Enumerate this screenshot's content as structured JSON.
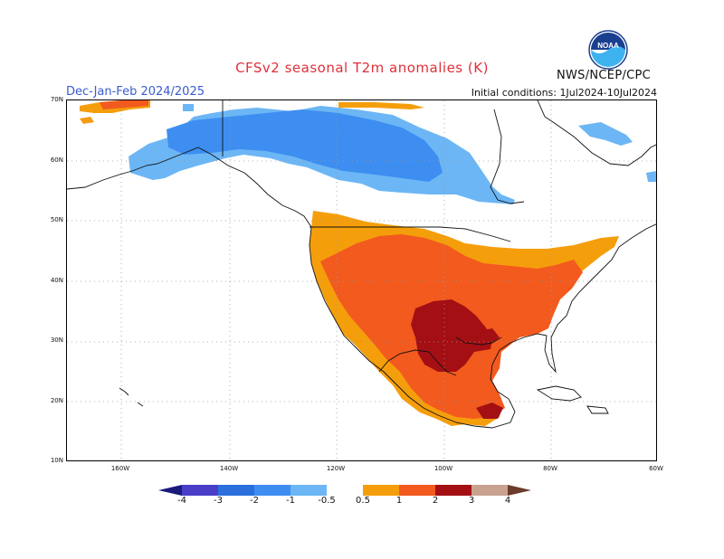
{
  "header": {
    "title": "CFSv2 seasonal T2m anomalies (K)",
    "season": "Dec-Jan-Feb 2024/2025",
    "initial_conditions": "Initial conditions: 1Jul2024-10Jul2024",
    "agency": "NWS/NCEP/CPC",
    "logo_text": "NOAA"
  },
  "map": {
    "lat_labels": [
      "70N",
      "60N",
      "50N",
      "40N",
      "30N",
      "20N",
      "10N"
    ],
    "lon_labels": [
      "160W",
      "140W",
      "120W",
      "100W",
      "80W",
      "60W"
    ],
    "gridlines": "dotted",
    "anomaly_regions": [
      {
        "region": "northern Alaska and Yukon / NW Canada",
        "bin": "-1 to -0.5",
        "color": "#6cb6f5"
      },
      {
        "region": "central-northern Canada core",
        "bin": "-2 to -1",
        "color": "#3d8ef0"
      },
      {
        "region": "far-north Alaska coast",
        "bin": "0.5 to 1 / 1 to 2",
        "color": "#f39c12"
      },
      {
        "region": "northern US border belt and eastern US",
        "bin": "0.5 to 1",
        "color": "#f59e0b"
      },
      {
        "region": "western, southern and southeastern US and Mexico",
        "bin": "1 to 2",
        "color": "#f25a1e"
      },
      {
        "region": "Texas, Oklahoma and northeastern Mexico",
        "bin": "2 to 3",
        "color": "#a40f14"
      }
    ]
  },
  "colorbar": {
    "tick_labels": [
      "-4",
      "-3",
      "-2",
      "-1",
      "-0.5",
      "0.5",
      "1",
      "2",
      "3",
      "4"
    ],
    "colors": [
      "#1a1a7c",
      "#4a3ec8",
      "#2a6fdc",
      "#3d8ef0",
      "#6cb6f5",
      "#ffffff",
      "#f59e0b",
      "#f25a1e",
      "#a40f14",
      "#c9a28f",
      "#6b3b2b"
    ]
  }
}
